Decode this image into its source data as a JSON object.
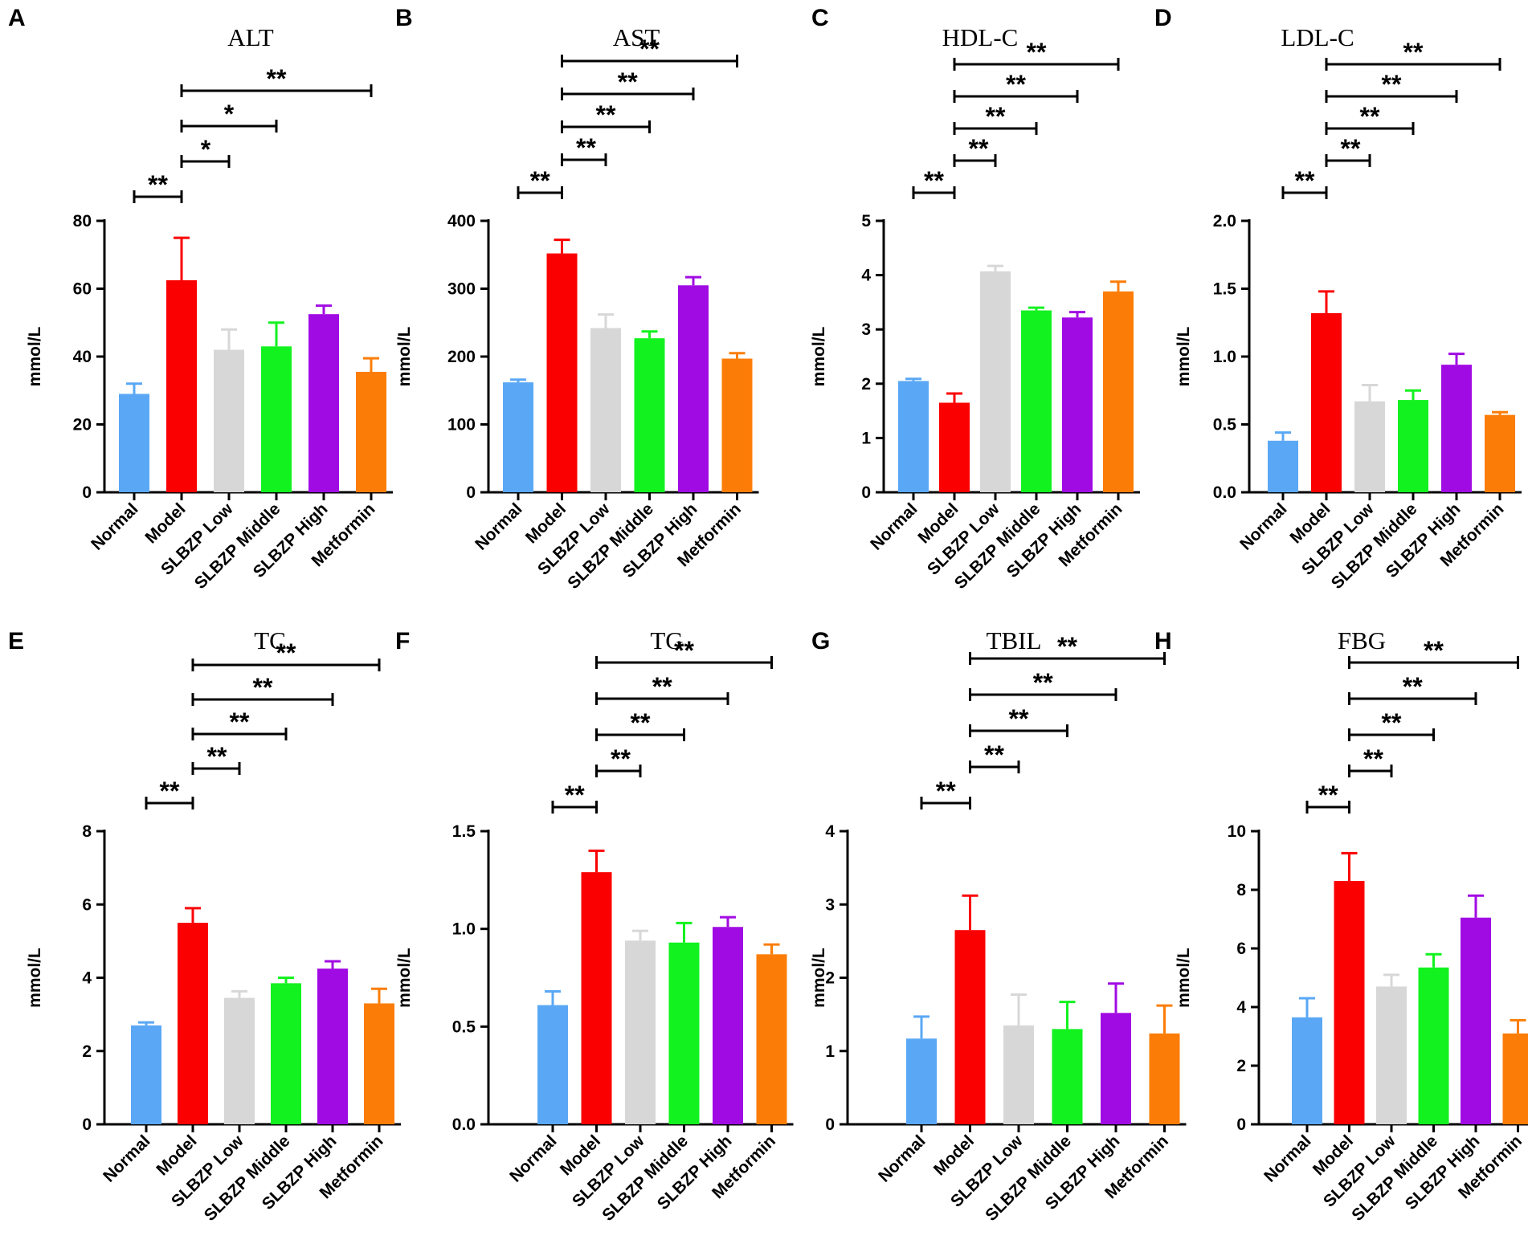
{
  "figure": {
    "categories": [
      "Normal",
      "Model",
      "SLBZP Low",
      "SLBZP Middle",
      "SLBZP High",
      "Metformin"
    ],
    "colors": [
      "#5aa8f5",
      "#fb0000",
      "#d7d7d7",
      "#12f21f",
      "#a10be3",
      "#fb7d07"
    ]
  },
  "chart_data": [
    {
      "panel": "A",
      "type": "bar",
      "title": "ALT",
      "ylabel": "mmol/L",
      "ylim": [
        0,
        80
      ],
      "yticks": [
        0,
        20,
        40,
        60,
        80
      ],
      "categories": [
        "Normal",
        "Model",
        "SLBZP Low",
        "SLBZP Middle",
        "SLBZP High",
        "Metformin"
      ],
      "values": [
        29,
        62.5,
        42,
        43,
        52.5,
        35.5
      ],
      "errors": [
        3,
        12.5,
        6,
        7,
        2.5,
        4
      ],
      "significance": [
        {
          "from": 0,
          "to": 1,
          "label": "**"
        },
        {
          "from": 1,
          "to": 2,
          "label": "*"
        },
        {
          "from": 1,
          "to": 3,
          "label": "*"
        },
        {
          "from": 1,
          "to": 5,
          "label": "**"
        }
      ]
    },
    {
      "panel": "B",
      "type": "bar",
      "title": "AST",
      "ylabel": "mmol/L",
      "ylim": [
        0,
        400
      ],
      "yticks": [
        0,
        100,
        200,
        300,
        400
      ],
      "categories": [
        "Normal",
        "Model",
        "SLBZP Low",
        "SLBZP Middle",
        "SLBZP High",
        "Metformin"
      ],
      "values": [
        162,
        352,
        242,
        227,
        305,
        197
      ],
      "errors": [
        4,
        20,
        20,
        10,
        12,
        8
      ],
      "significance": [
        {
          "from": 0,
          "to": 1,
          "label": "**"
        },
        {
          "from": 1,
          "to": 2,
          "label": "**"
        },
        {
          "from": 1,
          "to": 3,
          "label": "**"
        },
        {
          "from": 1,
          "to": 4,
          "label": "**"
        },
        {
          "from": 1,
          "to": 5,
          "label": "**"
        }
      ]
    },
    {
      "panel": "C",
      "type": "bar",
      "title": "HDL-C",
      "ylabel": "mmol/L",
      "ylim": [
        0,
        5
      ],
      "yticks": [
        0,
        1,
        2,
        3,
        4,
        5
      ],
      "categories": [
        "Normal",
        "Model",
        "SLBZP Low",
        "SLBZP Middle",
        "SLBZP High",
        "Metformin"
      ],
      "values": [
        2.05,
        1.65,
        4.07,
        3.35,
        3.22,
        3.7
      ],
      "errors": [
        0.04,
        0.17,
        0.1,
        0.05,
        0.1,
        0.18
      ],
      "significance": [
        {
          "from": 0,
          "to": 1,
          "label": "**"
        },
        {
          "from": 1,
          "to": 2,
          "label": "**"
        },
        {
          "from": 1,
          "to": 3,
          "label": "**"
        },
        {
          "from": 1,
          "to": 4,
          "label": "**"
        },
        {
          "from": 1,
          "to": 5,
          "label": "**"
        }
      ]
    },
    {
      "panel": "D",
      "type": "bar",
      "title": "LDL-C",
      "ylabel": "mmol/L",
      "ylim": [
        0,
        2.0
      ],
      "yticks": [
        0.0,
        0.5,
        1.0,
        1.5,
        2.0
      ],
      "categories": [
        "Normal",
        "Model",
        "SLBZP Low",
        "SLBZP Middle",
        "SLBZP High",
        "Metformin"
      ],
      "values": [
        0.38,
        1.32,
        0.67,
        0.68,
        0.94,
        0.57
      ],
      "errors": [
        0.06,
        0.16,
        0.12,
        0.07,
        0.08,
        0.02
      ],
      "significance": [
        {
          "from": 0,
          "to": 1,
          "label": "**"
        },
        {
          "from": 1,
          "to": 2,
          "label": "**"
        },
        {
          "from": 1,
          "to": 3,
          "label": "**"
        },
        {
          "from": 1,
          "to": 4,
          "label": "**"
        },
        {
          "from": 1,
          "to": 5,
          "label": "**"
        }
      ]
    },
    {
      "panel": "E",
      "type": "bar",
      "title": "TC",
      "ylabel": "mmol/L",
      "ylim": [
        0,
        8
      ],
      "yticks": [
        0,
        2,
        4,
        6,
        8
      ],
      "categories": [
        "Normal",
        "Model",
        "SLBZP Low",
        "SLBZP Middle",
        "SLBZP High",
        "Metformin"
      ],
      "values": [
        2.7,
        5.5,
        3.45,
        3.85,
        4.25,
        3.3
      ],
      "errors": [
        0.08,
        0.4,
        0.18,
        0.15,
        0.2,
        0.4
      ],
      "significance": [
        {
          "from": 0,
          "to": 1,
          "label": "**"
        },
        {
          "from": 1,
          "to": 2,
          "label": "**"
        },
        {
          "from": 1,
          "to": 3,
          "label": "**"
        },
        {
          "from": 1,
          "to": 4,
          "label": "**"
        },
        {
          "from": 1,
          "to": 5,
          "label": "**"
        }
      ]
    },
    {
      "panel": "F",
      "type": "bar",
      "title": "TG",
      "ylabel": "mmol/L",
      "ylim": [
        0,
        1.5
      ],
      "yticks": [
        0.0,
        0.5,
        1.0,
        1.5
      ],
      "categories": [
        "Normal",
        "Model",
        "SLBZP Low",
        "SLBZP Middle",
        "SLBZP High",
        "Metformin"
      ],
      "values": [
        0.61,
        1.29,
        0.94,
        0.93,
        1.01,
        0.87
      ],
      "errors": [
        0.07,
        0.11,
        0.05,
        0.1,
        0.05,
        0.05
      ],
      "significance": [
        {
          "from": 0,
          "to": 1,
          "label": "**"
        },
        {
          "from": 1,
          "to": 2,
          "label": "**"
        },
        {
          "from": 1,
          "to": 3,
          "label": "**"
        },
        {
          "from": 1,
          "to": 4,
          "label": "**"
        },
        {
          "from": 1,
          "to": 5,
          "label": "**"
        }
      ]
    },
    {
      "panel": "G",
      "type": "bar",
      "title": "TBIL",
      "ylabel": "mmol/L",
      "ylim": [
        0,
        4
      ],
      "yticks": [
        0,
        1,
        2,
        3,
        4
      ],
      "categories": [
        "Normal",
        "Model",
        "SLBZP Low",
        "SLBZP Middle",
        "SLBZP High",
        "Metformin"
      ],
      "values": [
        1.17,
        2.65,
        1.35,
        1.3,
        1.52,
        1.24
      ],
      "errors": [
        0.3,
        0.47,
        0.42,
        0.37,
        0.4,
        0.38
      ],
      "significance": [
        {
          "from": 0,
          "to": 1,
          "label": "**"
        },
        {
          "from": 1,
          "to": 2,
          "label": "**"
        },
        {
          "from": 1,
          "to": 3,
          "label": "**"
        },
        {
          "from": 1,
          "to": 4,
          "label": "**"
        },
        {
          "from": 1,
          "to": 5,
          "label": "**"
        }
      ]
    },
    {
      "panel": "H",
      "type": "bar",
      "title": "FBG",
      "ylabel": "mmol/L",
      "ylim": [
        0,
        10
      ],
      "yticks": [
        0,
        2,
        4,
        6,
        8,
        10
      ],
      "categories": [
        "Normal",
        "Model",
        "SLBZP Low",
        "SLBZP Middle",
        "SLBZP High",
        "Metformin"
      ],
      "values": [
        3.65,
        8.3,
        4.7,
        5.35,
        7.05,
        3.1
      ],
      "errors": [
        0.65,
        0.95,
        0.4,
        0.45,
        0.75,
        0.45
      ],
      "significance": [
        {
          "from": 0,
          "to": 1,
          "label": "**"
        },
        {
          "from": 1,
          "to": 2,
          "label": "**"
        },
        {
          "from": 1,
          "to": 3,
          "label": "**"
        },
        {
          "from": 1,
          "to": 4,
          "label": "**"
        },
        {
          "from": 1,
          "to": 5,
          "label": "**"
        }
      ]
    }
  ]
}
